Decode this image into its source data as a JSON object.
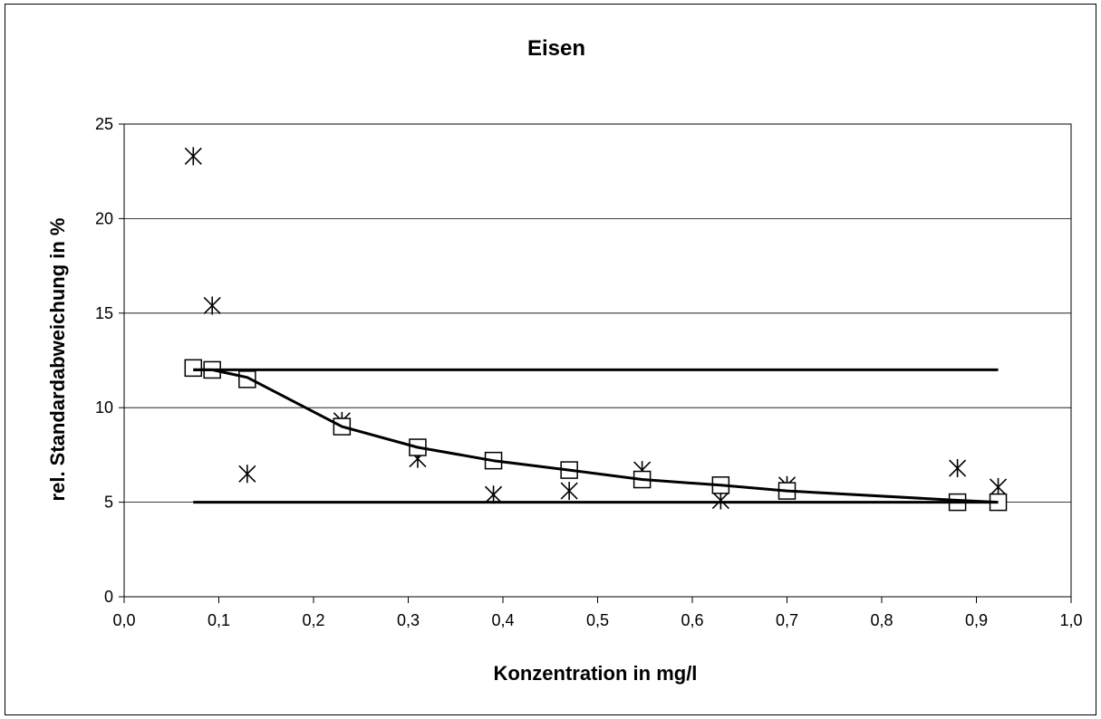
{
  "chart_data": {
    "type": "scatter",
    "title": "Eisen",
    "xlabel": "Konzentration in mg/l",
    "ylabel": "rel. Standardabweichung in %",
    "xlim": [
      0,
      1.0
    ],
    "ylim": [
      0,
      25
    ],
    "x_ticks": [
      "0,0",
      "0,1",
      "0,2",
      "0,3",
      "0,4",
      "0,5",
      "0,6",
      "0,7",
      "0,8",
      "0,9",
      "1,0"
    ],
    "y_ticks": [
      "0",
      "5",
      "10",
      "15",
      "20",
      "25"
    ],
    "grid": "horizontal",
    "legend": "none",
    "series": [
      {
        "marker": "star",
        "x": [
          0.073,
          0.093,
          0.13,
          0.23,
          0.31,
          0.39,
          0.47,
          0.547,
          0.63,
          0.7,
          0.88,
          0.923
        ],
        "y": [
          23.3,
          15.4,
          6.5,
          9.3,
          7.3,
          5.4,
          5.6,
          6.7,
          5.1,
          5.9,
          6.8,
          5.8
        ]
      },
      {
        "marker": "square",
        "x": [
          0.073,
          0.093,
          0.13,
          0.23,
          0.31,
          0.39,
          0.47,
          0.547,
          0.63,
          0.7,
          0.88,
          0.923
        ],
        "y": [
          12.1,
          12.0,
          11.5,
          9.0,
          7.9,
          7.2,
          6.7,
          6.2,
          5.9,
          5.6,
          5.0,
          5.0
        ]
      },
      {
        "marker": "none",
        "x": [
          0.073,
          0.093,
          0.13,
          0.23,
          0.31,
          0.39,
          0.47,
          0.547,
          0.63,
          0.7,
          0.88,
          0.923
        ],
        "y": [
          12.0,
          12.0,
          11.6,
          9.0,
          7.9,
          7.2,
          6.7,
          6.2,
          5.9,
          5.6,
          5.1,
          5.0
        ]
      },
      {
        "marker": "none",
        "x": [
          0.073,
          0.923
        ],
        "y": [
          12,
          12
        ]
      },
      {
        "marker": "none",
        "x": [
          0.073,
          0.923
        ],
        "y": [
          5,
          5
        ]
      }
    ]
  }
}
